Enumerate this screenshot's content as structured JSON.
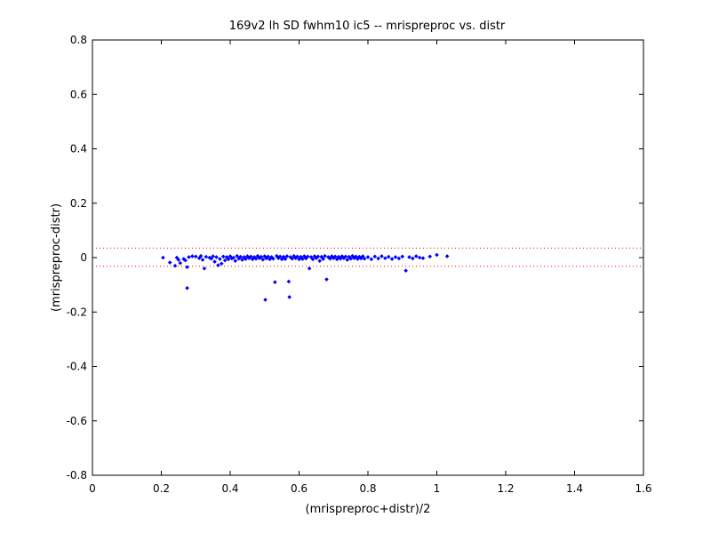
{
  "chart_data": {
    "type": "scatter",
    "title": "169v2 lh SD fwhm10 ic5 -- mrispreproc vs. distr",
    "xlabel": "(mrispreproc+distr)/2",
    "ylabel": "(mrispreproc-distr)",
    "xlim": [
      0,
      1.6
    ],
    "ylim": [
      -0.8,
      0.8
    ],
    "x_ticks": [
      "0",
      "0.2",
      "0.4",
      "0.6",
      "0.8",
      "1",
      "1.2",
      "1.4",
      "1.6"
    ],
    "y_ticks": [
      "0.8",
      "0.6",
      "0.4",
      "0.2",
      "0",
      "-0.2",
      "-0.4",
      "-0.6",
      "-0.8"
    ],
    "grid": false,
    "marker_color": "#0000ff",
    "reference_lines": {
      "color": "#ff0000",
      "style": "dotted",
      "y_values": [
        0.035,
        -0.032
      ]
    },
    "series": [
      {
        "points": [
          [
            0.205,
            0.0
          ],
          [
            0.225,
            -0.018
          ],
          [
            0.24,
            -0.03
          ],
          [
            0.245,
            0.0
          ],
          [
            0.25,
            -0.008
          ],
          [
            0.255,
            -0.02
          ],
          [
            0.265,
            -0.005
          ],
          [
            0.27,
            -0.01
          ],
          [
            0.275,
            -0.035
          ],
          [
            0.275,
            -0.112
          ],
          [
            0.28,
            0.002
          ],
          [
            0.29,
            0.005
          ],
          [
            0.3,
            0.004
          ],
          [
            0.31,
            -0.002
          ],
          [
            0.315,
            0.006
          ],
          [
            0.32,
            -0.008
          ],
          [
            0.325,
            -0.04
          ],
          [
            0.33,
            0.003
          ],
          [
            0.34,
            0.0
          ],
          [
            0.345,
            -0.004
          ],
          [
            0.35,
            0.005
          ],
          [
            0.355,
            -0.015
          ],
          [
            0.36,
            0.002
          ],
          [
            0.365,
            -0.028
          ],
          [
            0.37,
            -0.005
          ],
          [
            0.375,
            -0.022
          ],
          [
            0.38,
            0.004
          ],
          [
            0.385,
            -0.01
          ],
          [
            0.39,
            0.002
          ],
          [
            0.395,
            -0.006
          ],
          [
            0.4,
            0.005
          ],
          [
            0.405,
            -0.003
          ],
          [
            0.41,
            0.0
          ],
          [
            0.415,
            -0.012
          ],
          [
            0.42,
            0.006
          ],
          [
            0.425,
            -0.004
          ],
          [
            0.43,
            0.003
          ],
          [
            0.435,
            -0.008
          ],
          [
            0.44,
            0.002
          ],
          [
            0.445,
            -0.005
          ],
          [
            0.45,
            0.005
          ],
          [
            0.455,
            -0.002
          ],
          [
            0.46,
            0.004
          ],
          [
            0.465,
            -0.006
          ],
          [
            0.47,
            0.002
          ],
          [
            0.475,
            -0.004
          ],
          [
            0.48,
            0.006
          ],
          [
            0.485,
            -0.002
          ],
          [
            0.49,
            0.003
          ],
          [
            0.495,
            -0.007
          ],
          [
            0.5,
            0.005
          ],
          [
            0.502,
            -0.155
          ],
          [
            0.505,
            -0.003
          ],
          [
            0.51,
            0.004
          ],
          [
            0.515,
            -0.006
          ],
          [
            0.52,
            0.002
          ],
          [
            0.525,
            -0.004
          ],
          [
            0.53,
            -0.09
          ],
          [
            0.535,
            0.006
          ],
          [
            0.54,
            -0.002
          ],
          [
            0.545,
            0.004
          ],
          [
            0.55,
            -0.006
          ],
          [
            0.555,
            0.003
          ],
          [
            0.56,
            -0.005
          ],
          [
            0.565,
            0.005
          ],
          [
            0.57,
            -0.088
          ],
          [
            0.572,
            -0.145
          ],
          [
            0.575,
            0.002
          ],
          [
            0.58,
            -0.004
          ],
          [
            0.585,
            0.006
          ],
          [
            0.59,
            -0.002
          ],
          [
            0.595,
            0.004
          ],
          [
            0.6,
            -0.006
          ],
          [
            0.605,
            0.003
          ],
          [
            0.61,
            -0.005
          ],
          [
            0.615,
            0.005
          ],
          [
            0.62,
            -0.003
          ],
          [
            0.625,
            0.004
          ],
          [
            0.63,
            -0.04
          ],
          [
            0.635,
            0.002
          ],
          [
            0.64,
            -0.006
          ],
          [
            0.645,
            0.005
          ],
          [
            0.65,
            -0.002
          ],
          [
            0.655,
            0.004
          ],
          [
            0.66,
            -0.012
          ],
          [
            0.665,
            0.003
          ],
          [
            0.67,
            -0.005
          ],
          [
            0.675,
            0.006
          ],
          [
            0.68,
            -0.08
          ],
          [
            0.685,
            0.002
          ],
          [
            0.69,
            -0.004
          ],
          [
            0.695,
            0.005
          ],
          [
            0.7,
            -0.002
          ],
          [
            0.705,
            0.004
          ],
          [
            0.71,
            -0.006
          ],
          [
            0.715,
            0.003
          ],
          [
            0.72,
            -0.004
          ],
          [
            0.725,
            0.005
          ],
          [
            0.73,
            -0.002
          ],
          [
            0.735,
            0.004
          ],
          [
            0.74,
            -0.008
          ],
          [
            0.745,
            0.003
          ],
          [
            0.75,
            -0.004
          ],
          [
            0.755,
            0.006
          ],
          [
            0.76,
            -0.002
          ],
          [
            0.765,
            0.004
          ],
          [
            0.77,
            -0.005
          ],
          [
            0.775,
            0.003
          ],
          [
            0.78,
            -0.003
          ],
          [
            0.785,
            0.005
          ],
          [
            0.79,
            -0.004
          ],
          [
            0.8,
            0.002
          ],
          [
            0.81,
            -0.006
          ],
          [
            0.82,
            0.004
          ],
          [
            0.83,
            -0.003
          ],
          [
            0.84,
            0.005
          ],
          [
            0.85,
            -0.002
          ],
          [
            0.86,
            0.003
          ],
          [
            0.87,
            -0.005
          ],
          [
            0.88,
            0.002
          ],
          [
            0.89,
            -0.003
          ],
          [
            0.9,
            0.004
          ],
          [
            0.91,
            -0.048
          ],
          [
            0.92,
            0.002
          ],
          [
            0.93,
            -0.003
          ],
          [
            0.94,
            0.005
          ],
          [
            0.95,
            0.0
          ],
          [
            0.96,
            -0.002
          ],
          [
            0.98,
            0.004
          ],
          [
            1.0,
            0.01
          ],
          [
            1.03,
            0.005
          ]
        ]
      }
    ]
  }
}
